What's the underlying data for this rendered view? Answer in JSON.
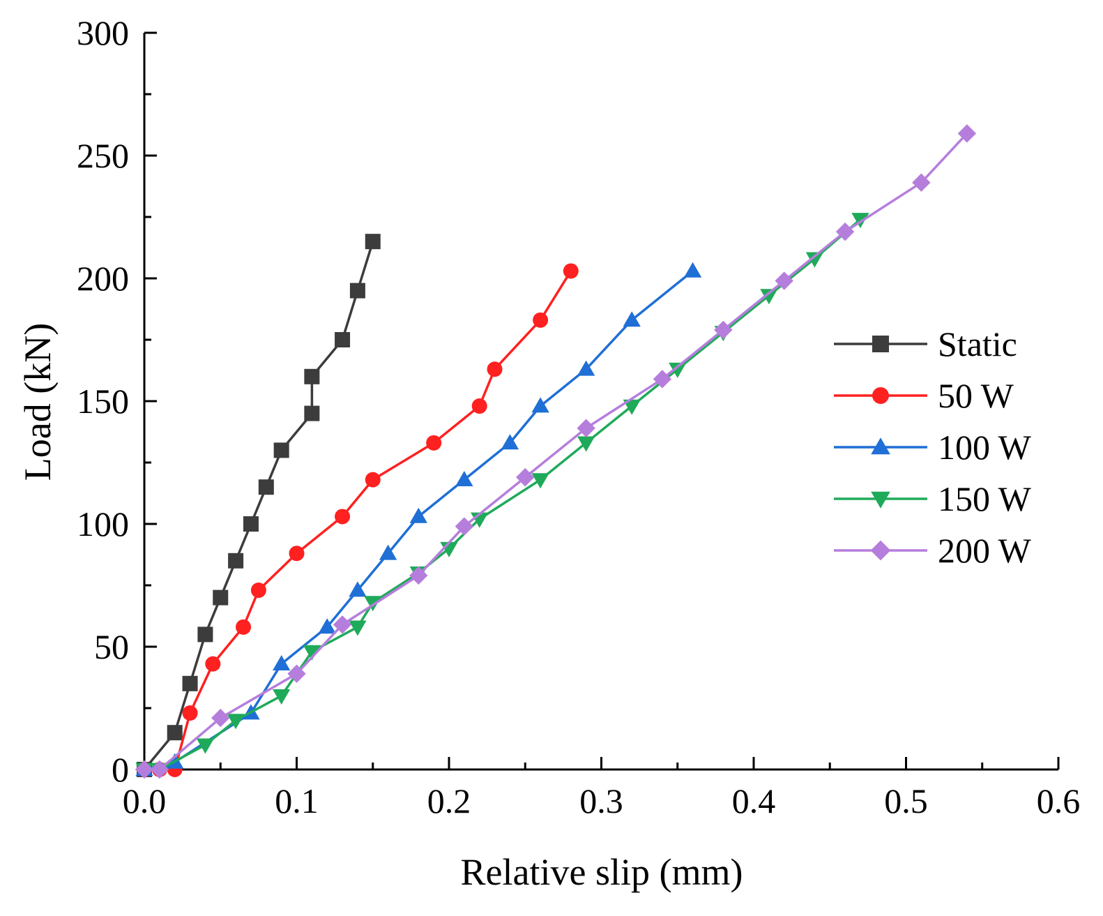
{
  "chart_data": {
    "type": "line",
    "title": "",
    "xlabel": "Relative slip (mm)",
    "ylabel": "Load (kN)",
    "xlim": [
      0,
      0.6
    ],
    "ylim": [
      0,
      300
    ],
    "xticks": [
      "0.0",
      "0.1",
      "0.2",
      "0.3",
      "0.4",
      "0.5",
      "0.6"
    ],
    "xtick_values": [
      0,
      0.1,
      0.2,
      0.3,
      0.4,
      0.5,
      0.6
    ],
    "yticks": [
      "0",
      "50",
      "100",
      "150",
      "200",
      "250",
      "300"
    ],
    "ytick_values": [
      0,
      50,
      100,
      150,
      200,
      250,
      300
    ],
    "grid": false,
    "legend_position": "right",
    "series": [
      {
        "name": "Static",
        "color": "#3c3c3c",
        "marker": "square",
        "x": [
          0,
          0.02,
          0.03,
          0.04,
          0.05,
          0.06,
          0.07,
          0.08,
          0.09,
          0.11,
          0.11,
          0.13,
          0.14,
          0.15
        ],
        "y": [
          0,
          15,
          35,
          55,
          70,
          85,
          100,
          115,
          130,
          145,
          160,
          175,
          195,
          215
        ]
      },
      {
        "name": "50 W",
        "color": "#ff2020",
        "marker": "circle",
        "x": [
          0,
          0.01,
          0.02,
          0.03,
          0.045,
          0.065,
          0.075,
          0.1,
          0.13,
          0.15,
          0.19,
          0.22,
          0.23,
          0.26,
          0.28
        ],
        "y": [
          0,
          0,
          0,
          23,
          43,
          58,
          73,
          88,
          103,
          118,
          133,
          148,
          163,
          183,
          203
        ]
      },
      {
        "name": "100 W",
        "color": "#1f6fd6",
        "marker": "triangle-up",
        "x": [
          0,
          0.02,
          0.07,
          0.09,
          0.12,
          0.14,
          0.16,
          0.18,
          0.21,
          0.24,
          0.26,
          0.29,
          0.32,
          0.36
        ],
        "y": [
          0,
          3,
          23,
          43,
          58,
          73,
          88,
          103,
          118,
          133,
          148,
          163,
          183,
          203
        ]
      },
      {
        "name": "150 W",
        "color": "#1faa5a",
        "marker": "triangle-down",
        "x": [
          0,
          0.01,
          0.04,
          0.06,
          0.09,
          0.11,
          0.14,
          0.15,
          0.18,
          0.2,
          0.22,
          0.26,
          0.29,
          0.32,
          0.35,
          0.38,
          0.41,
          0.44,
          0.47
        ],
        "y": [
          0,
          0,
          10,
          20,
          30,
          48,
          58,
          68,
          80,
          90,
          102,
          118,
          133,
          148,
          163,
          178,
          193,
          208,
          224
        ]
      },
      {
        "name": "200 W",
        "color": "#b57edc",
        "marker": "diamond",
        "x": [
          0,
          0.01,
          0.05,
          0.1,
          0.13,
          0.18,
          0.21,
          0.25,
          0.29,
          0.34,
          0.38,
          0.42,
          0.46,
          0.51,
          0.54
        ],
        "y": [
          0,
          0,
          21,
          39,
          59,
          79,
          99,
          119,
          139,
          159,
          179,
          199,
          219,
          239,
          259
        ]
      }
    ]
  }
}
